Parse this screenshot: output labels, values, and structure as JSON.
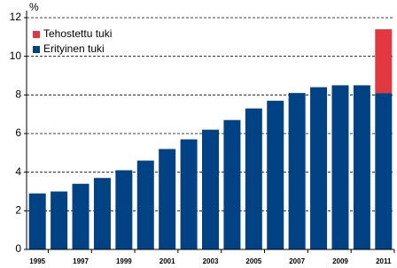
{
  "chart_data": {
    "type": "stacked-bar",
    "y_label": "%",
    "categories": [
      "1995",
      null,
      "1997",
      null,
      "1999",
      null,
      "2001",
      null,
      "2003",
      null,
      "2005",
      null,
      "2007",
      null,
      "2009",
      null,
      "2011"
    ],
    "series": [
      {
        "name": "Erityinen tuki",
        "color": "#004283",
        "values": [
          2.9,
          3.0,
          3.4,
          3.7,
          4.1,
          4.6,
          5.2,
          5.7,
          6.2,
          6.7,
          7.3,
          7.7,
          8.1,
          8.4,
          8.5,
          8.5,
          8.1
        ]
      },
      {
        "name": "Tehostettu tuki",
        "color": "#e2383f",
        "values": [
          null,
          null,
          null,
          null,
          null,
          null,
          null,
          null,
          null,
          null,
          null,
          null,
          null,
          null,
          null,
          null,
          3.3
        ]
      }
    ],
    "ylim": [
      0,
      12
    ],
    "yticks": [
      0,
      2,
      4,
      6,
      8,
      10,
      12
    ],
    "grid": true
  }
}
